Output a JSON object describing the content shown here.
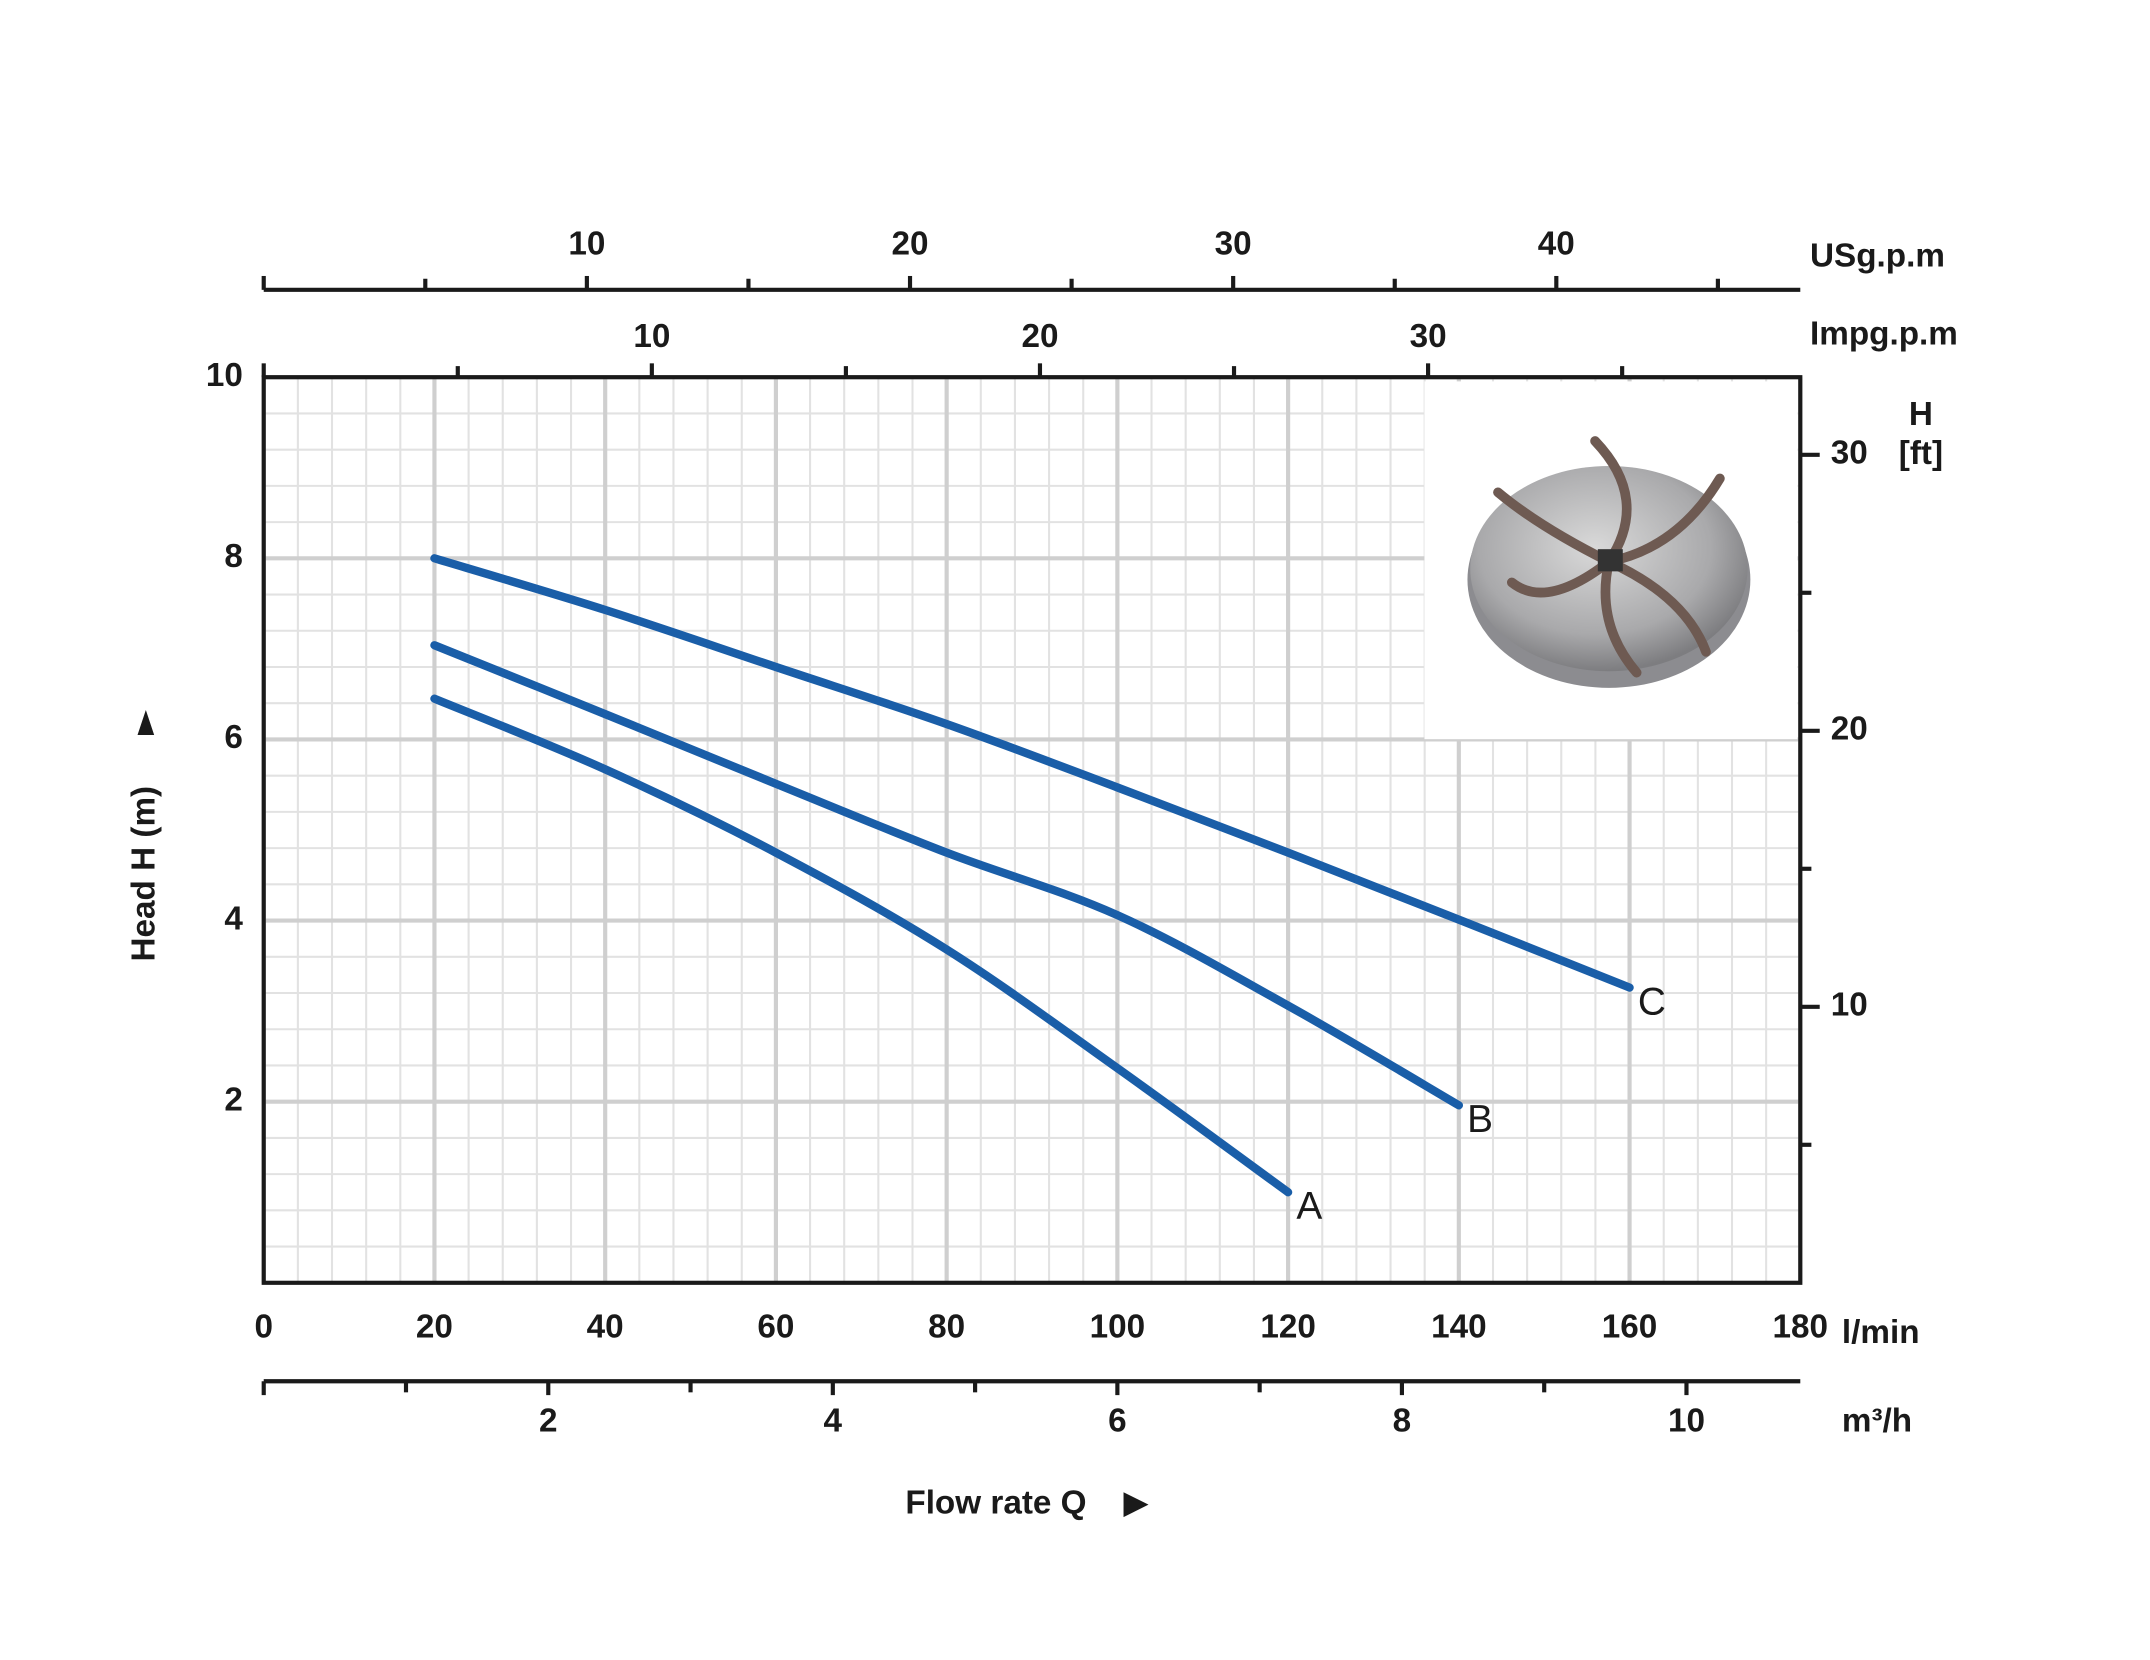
{
  "chart_data": {
    "type": "line",
    "xlabel": "Flow rate Q",
    "x_unit": "l/min",
    "ylabel": "Head H (m)",
    "xlim": [
      0,
      180
    ],
    "xticks": [
      0,
      20,
      40,
      60,
      80,
      100,
      120,
      140,
      160,
      180
    ],
    "ylim": [
      0,
      10
    ],
    "yticks": [
      2,
      4,
      6,
      8,
      10
    ],
    "grid": true,
    "x": [
      20,
      40,
      60,
      80,
      100,
      120,
      140,
      160
    ],
    "series": [
      {
        "name": "A",
        "color": "#1a5ea8",
        "values": [
          6.45,
          5.67,
          4.75,
          3.68,
          2.37,
          1.0,
          null,
          null
        ]
      },
      {
        "name": "B",
        "color": "#1a5ea8",
        "values": [
          7.04,
          6.28,
          5.51,
          4.75,
          4.06,
          3.06,
          1.96,
          null
        ]
      },
      {
        "name": "C",
        "color": "#1a5ea8",
        "values": [
          8.0,
          7.43,
          6.8,
          6.17,
          5.47,
          4.75,
          4.01,
          3.26
        ]
      }
    ],
    "y2label": "H [ft]",
    "y2lim": [
      0,
      32.81
    ],
    "y2ticks": [
      10,
      20,
      30
    ],
    "x2_axes": [
      {
        "label": "m³/h",
        "position": "bottom",
        "lim": [
          0,
          10.8
        ],
        "ticks": [
          2,
          4,
          6,
          8,
          10
        ]
      },
      {
        "label": "USg.p.m",
        "position": "top",
        "lim": [
          0,
          47.55
        ],
        "ticks": [
          10,
          20,
          30,
          40
        ]
      },
      {
        "label": "Impg.p.m",
        "position": "top",
        "lim": [
          0,
          39.59
        ],
        "ticks": [
          10,
          20,
          30
        ]
      }
    ]
  }
}
